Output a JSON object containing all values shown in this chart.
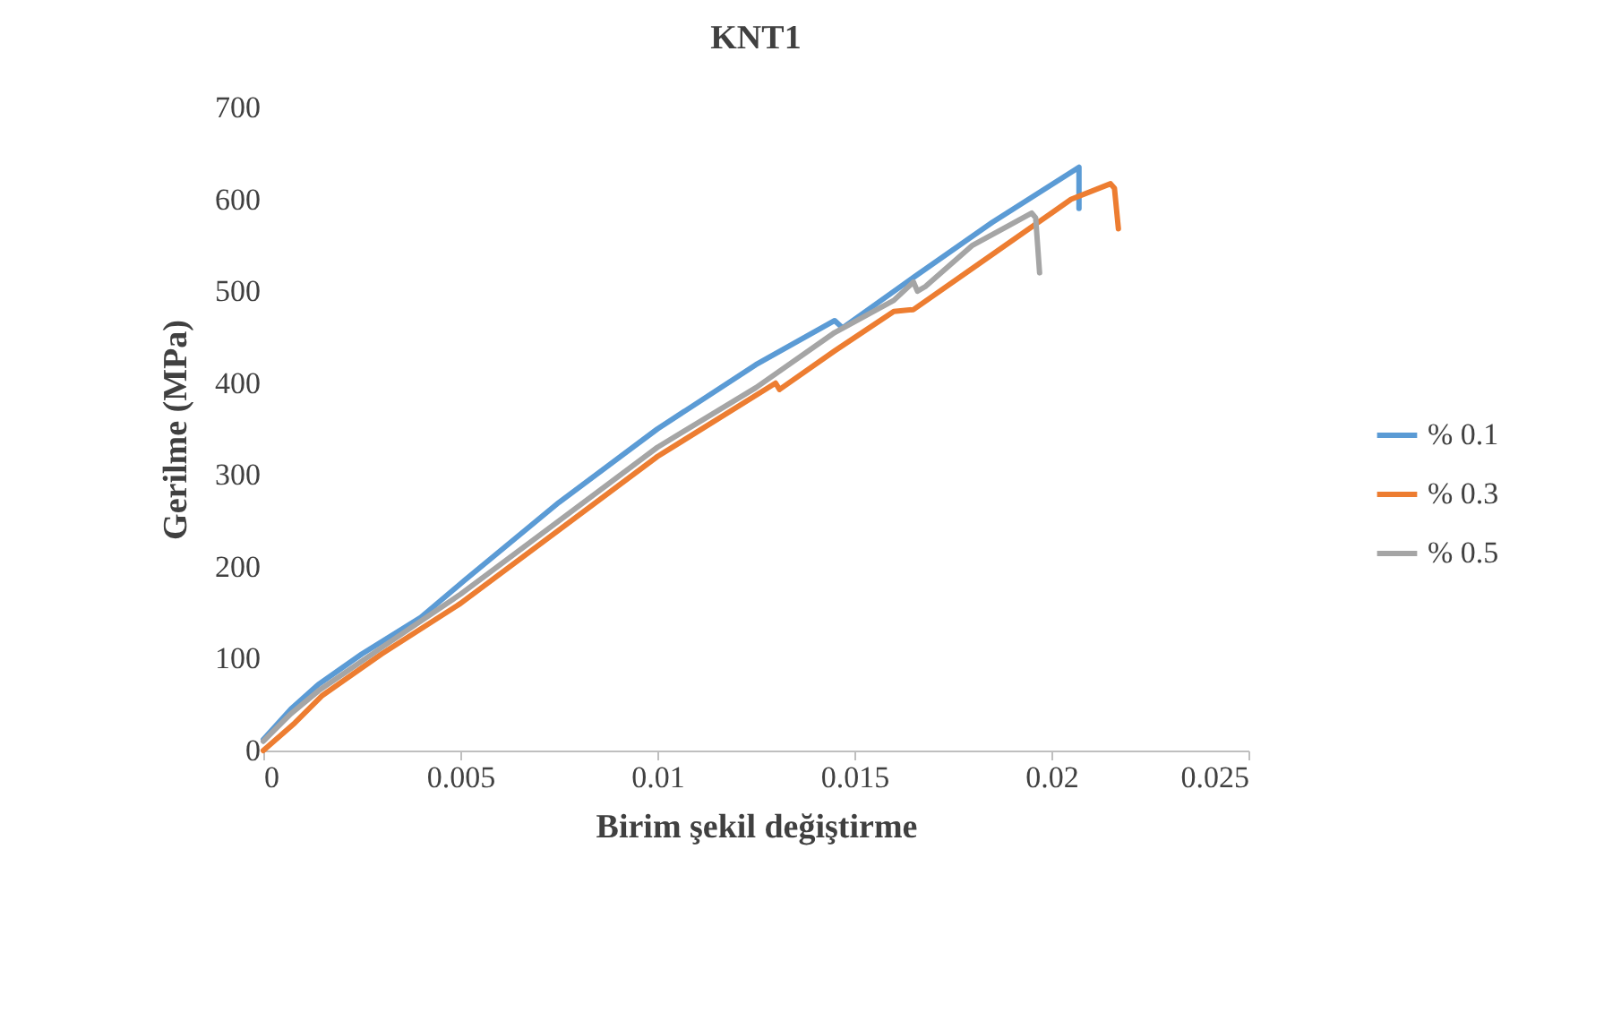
{
  "chart_data": {
    "type": "line",
    "title": "KNT1",
    "xlabel": "Birim şekil değiştirme",
    "ylabel": "Gerilme (MPa)",
    "xlim": [
      0,
      0.025
    ],
    "xticks": [
      {
        "value": 0,
        "label": "0"
      },
      {
        "value": 0.005,
        "label": "0.005"
      },
      {
        "value": 0.01,
        "label": "0.01"
      },
      {
        "value": 0.015,
        "label": "0.015"
      },
      {
        "value": 0.02,
        "label": "0.02"
      },
      {
        "value": 0.025,
        "label": "0.025"
      }
    ],
    "ylim": [
      0,
      700
    ],
    "yticks": [
      0,
      100,
      200,
      300,
      400,
      500,
      600,
      700
    ],
    "grid": false,
    "legend": "right",
    "marker": "none",
    "line_style": "solid",
    "series": [
      {
        "name": "% 0.1",
        "color": "#5b9bd5",
        "x": [
          0,
          0.0007,
          0.0014,
          0.0025,
          0.004,
          0.0051,
          0.0075,
          0.01,
          0.0125,
          0.0145,
          0.0147,
          0.0165,
          0.0185,
          0.0207,
          0.0207
        ],
        "values": [
          12,
          45,
          72,
          105,
          145,
          185,
          270,
          350,
          420,
          468,
          460,
          515,
          575,
          635,
          590
        ]
      },
      {
        "name": "% 0.3",
        "color": "#ed7d31",
        "x": [
          0,
          0.0008,
          0.0015,
          0.003,
          0.005,
          0.0075,
          0.01,
          0.013,
          0.0131,
          0.0145,
          0.016,
          0.0165,
          0.018,
          0.02,
          0.0205,
          0.0215,
          0.0216,
          0.0217
        ],
        "values": [
          0,
          30,
          60,
          105,
          160,
          240,
          320,
          400,
          393,
          435,
          478,
          480,
          525,
          585,
          600,
          617,
          612,
          568
        ]
      },
      {
        "name": "% 0.5",
        "color": "#a5a5a5",
        "x": [
          0,
          0.0007,
          0.0014,
          0.003,
          0.005,
          0.0075,
          0.01,
          0.0125,
          0.0145,
          0.016,
          0.0165,
          0.0166,
          0.0168,
          0.018,
          0.0195,
          0.0196,
          0.0197
        ],
        "values": [
          10,
          40,
          65,
          112,
          170,
          250,
          330,
          395,
          455,
          490,
          510,
          500,
          505,
          550,
          585,
          580,
          520
        ]
      }
    ]
  }
}
